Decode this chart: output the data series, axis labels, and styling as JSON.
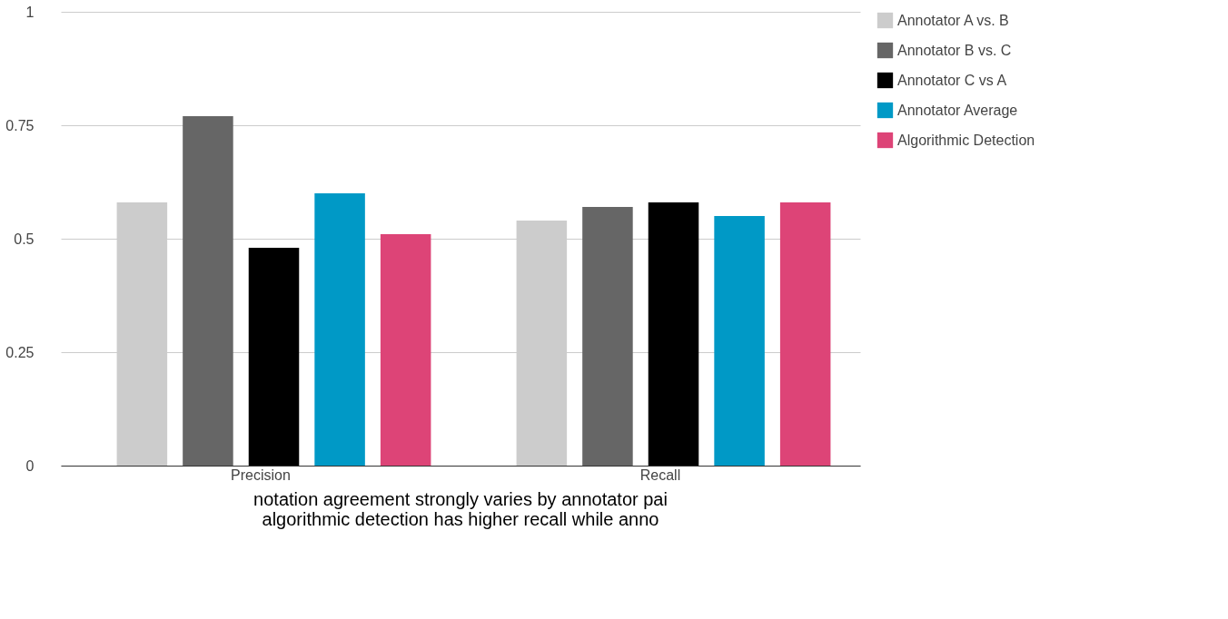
{
  "chart_data": {
    "type": "bar",
    "categories": [
      "Precision",
      "Recall"
    ],
    "series": [
      {
        "name": "Annotator A vs. B",
        "color": "#cccccc",
        "values": [
          0.58,
          0.54
        ]
      },
      {
        "name": "Annotator B vs. C",
        "color": "#666666",
        "values": [
          0.77,
          0.57
        ]
      },
      {
        "name": "Annotator C vs A",
        "color": "#000000",
        "values": [
          0.48,
          0.58
        ]
      },
      {
        "name": "Annotator Average",
        "color": "#0099c6",
        "values": [
          0.6,
          0.55
        ]
      },
      {
        "name": "Algorithmic Detection",
        "color": "#dd4477",
        "values": [
          0.51,
          0.58
        ]
      }
    ],
    "ylim": [
      0,
      1
    ],
    "yticks": [
      0,
      0.25,
      0.5,
      0.75,
      1
    ],
    "grid": "y",
    "legend": "top right",
    "annotations": [
      "notation agreement strongly varies by annotator pai",
      "algorithmic detection has higher recall while anno"
    ]
  }
}
